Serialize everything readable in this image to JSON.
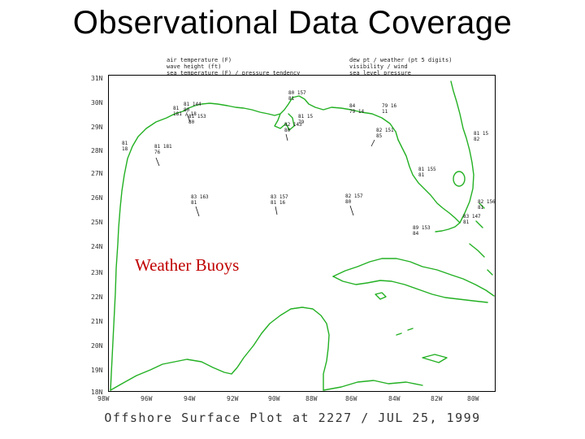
{
  "slide": {
    "title": "Observational Data Coverage",
    "buoys_label": "Weather Buoys",
    "caption": "Offshore Surface Plot at 2227 / JUL 25, 1999"
  },
  "legend": {
    "left": [
      "air temperature (F)",
      "wave height (ft)",
      "sea temperature (F) / pressure tendency"
    ],
    "right": [
      "dew pt / weather (pt 5 digits)",
      "visibility / wind",
      "sea level pressure"
    ]
  },
  "map": {
    "lat_labels": [
      "31N",
      "30N",
      "29N",
      "28N",
      "27N",
      "26N",
      "25N",
      "24N",
      "23N",
      "22N",
      "21N",
      "20N",
      "19N",
      "18N"
    ],
    "lon_labels": [
      "98W",
      "96W",
      "94W",
      "92W",
      "90W",
      "88W",
      "86W",
      "84W",
      "82W",
      "80W"
    ],
    "coastline_color": "#22b022",
    "buoy_label_color": "#c00000"
  },
  "stations": [
    {
      "id": "st1",
      "lines": [
        "81",
        "18"
      ]
    },
    {
      "id": "st2",
      "lines": [
        "81 181",
        "76"
      ]
    },
    {
      "id": "st3",
      "lines": [
        "81",
        "181 / 18"
      ]
    },
    {
      "id": "st4",
      "lines": [
        "81 144",
        "80"
      ]
    },
    {
      "id": "st5",
      "lines": [
        "81 153",
        "80"
      ]
    },
    {
      "id": "st6",
      "lines": [
        "80 157",
        "81"
      ]
    },
    {
      "id": "st7",
      "lines": [
        "81 15",
        "79"
      ]
    },
    {
      "id": "st8",
      "lines": [
        "82 143",
        "80"
      ]
    },
    {
      "id": "st9",
      "lines": [
        "84",
        "79 14"
      ]
    },
    {
      "id": "st10",
      "lines": [
        "82 151",
        "85"
      ]
    },
    {
      "id": "st11",
      "lines": [
        "79 16",
        "11"
      ]
    },
    {
      "id": "st12",
      "lines": [
        "81 155",
        "81"
      ]
    },
    {
      "id": "st13",
      "lines": [
        "83 163",
        "81"
      ]
    },
    {
      "id": "st14",
      "lines": [
        "83 157",
        "81 16"
      ]
    },
    {
      "id": "st15",
      "lines": [
        "82 157",
        "80"
      ]
    },
    {
      "id": "st16",
      "lines": [
        "89 153",
        "84"
      ]
    },
    {
      "id": "st17",
      "lines": [
        "83 147",
        "81"
      ]
    },
    {
      "id": "st18",
      "lines": [
        "81 15",
        "82"
      ]
    },
    {
      "id": "st19",
      "lines": [
        "82 156",
        "81"
      ]
    }
  ]
}
